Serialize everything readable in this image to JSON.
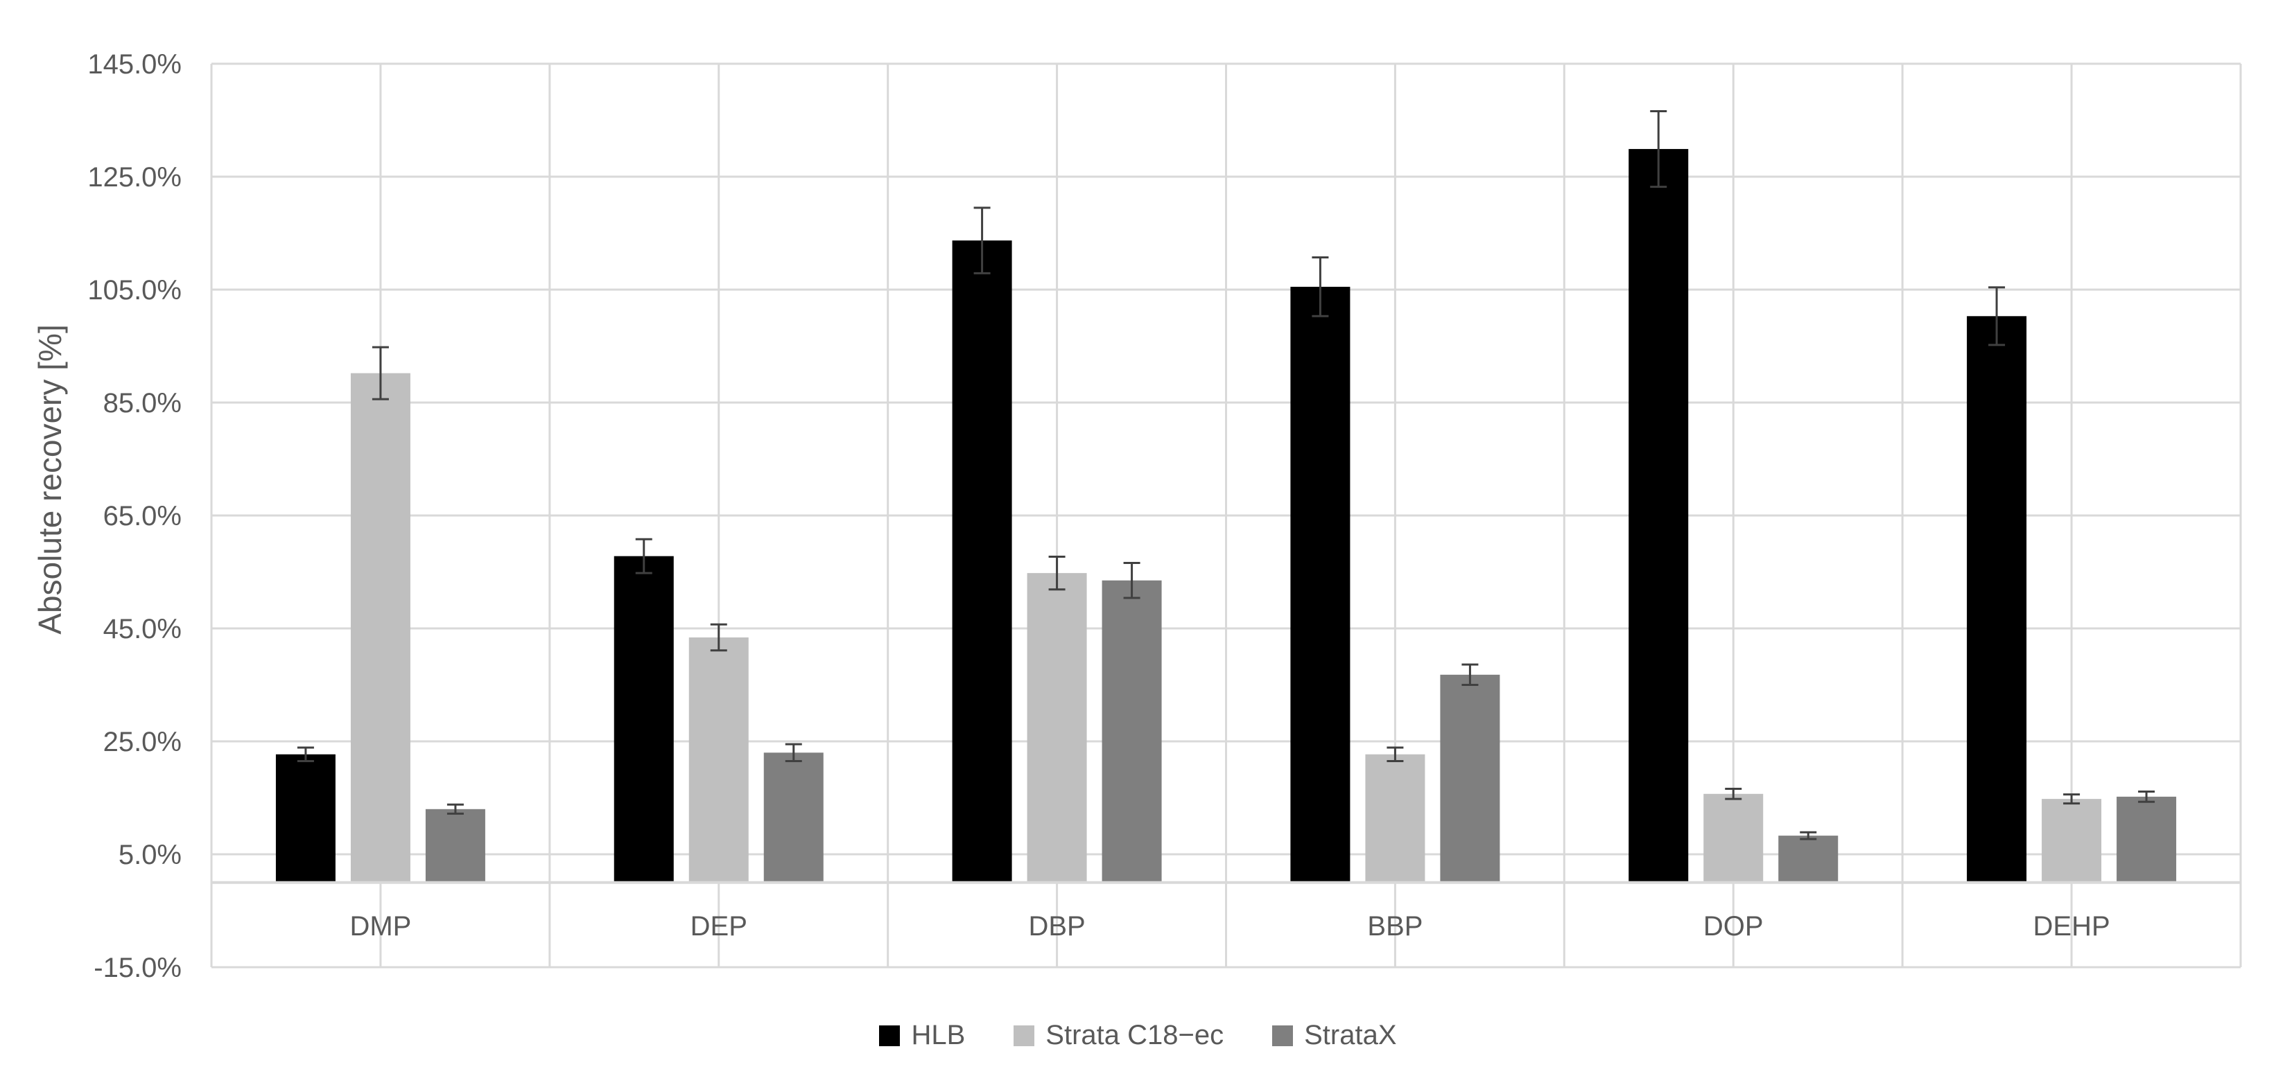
{
  "chart_data": {
    "type": "bar",
    "ylabel": "Absolute recovery [%]",
    "xlabel": "",
    "ylim": [
      -15,
      145
    ],
    "yticks": [
      -15,
      5,
      25,
      45,
      65,
      85,
      105,
      125,
      145
    ],
    "ytick_labels": [
      "-15.0%",
      "5.0%",
      "25.0%",
      "45.0%",
      "65.0%",
      "85.0%",
      "105.0%",
      "125.0%",
      "145.0%"
    ],
    "categories": [
      "DMP",
      "DEP",
      "DBP",
      "BBP",
      "DOP",
      "DEHP"
    ],
    "series": [
      {
        "name": "HLB",
        "color": "#000000",
        "values": [
          22.7,
          57.8,
          113.7,
          105.5,
          129.9,
          100.3
        ],
        "errors": [
          1.2,
          3.0,
          5.8,
          5.2,
          6.7,
          5.1
        ]
      },
      {
        "name": "Strata C18−ec",
        "color": "#bfbfbf",
        "values": [
          90.2,
          43.4,
          54.8,
          22.7,
          15.7,
          14.8
        ],
        "errors": [
          4.6,
          2.3,
          2.9,
          1.2,
          0.9,
          0.8
        ]
      },
      {
        "name": "StrataX",
        "color": "#7f7f7f",
        "values": [
          13.0,
          23.0,
          53.5,
          36.8,
          8.3,
          15.2
        ],
        "errors": [
          0.8,
          1.5,
          3.1,
          1.8,
          0.6,
          0.9
        ]
      }
    ],
    "grid": true,
    "legend_position": "bottom"
  }
}
